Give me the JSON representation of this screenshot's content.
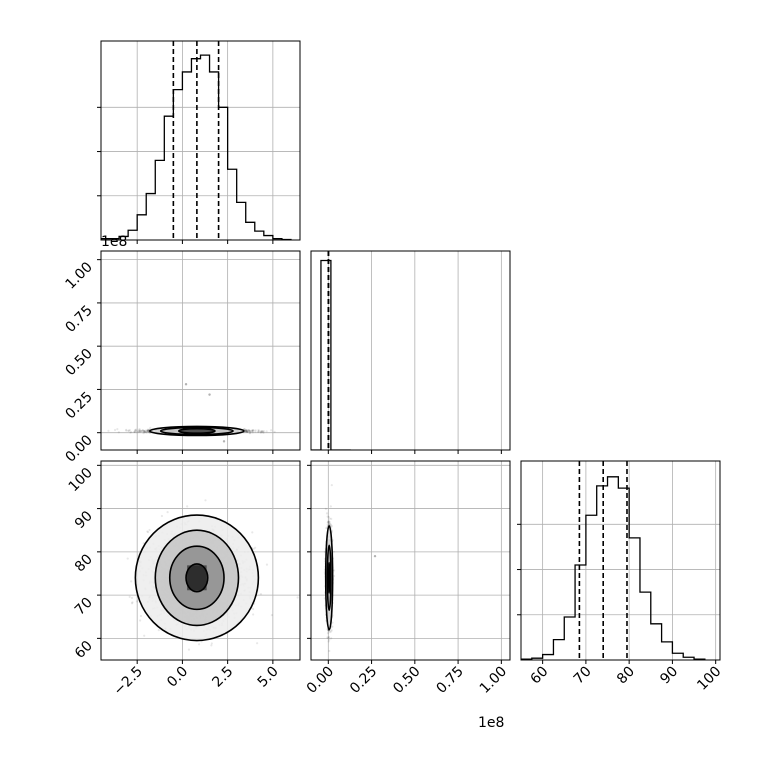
{
  "chart_data": {
    "type": "corner",
    "offset_labels": {
      "y_row2": "1e8",
      "x_col2": "1e8"
    },
    "parameters": [
      {
        "id": "p0",
        "range": [
          -4.5,
          6.5
        ],
        "ticks": [
          -2.5,
          0.0,
          2.5,
          5.0
        ],
        "tick_labels": [
          "−2.5",
          "0.0",
          "2.5",
          "5.0"
        ]
      },
      {
        "id": "p1",
        "range": [
          -0.1,
          1.05
        ],
        "ticks": [
          0.0,
          0.25,
          0.5,
          0.75,
          1.0
        ],
        "tick_labels": [
          "0.00",
          "0.25",
          "0.50",
          "0.75",
          "1.00"
        ]
      },
      {
        "id": "p2",
        "range": [
          55,
          101
        ],
        "ticks": [
          60,
          70,
          80,
          90,
          100
        ],
        "tick_labels": [
          "60",
          "70",
          "80",
          "90",
          "100"
        ]
      }
    ],
    "histograms": [
      {
        "param": "p0",
        "bin_edges": [
          -4.5,
          -4.0,
          -3.5,
          -3.0,
          -2.5,
          -2.0,
          -1.5,
          -1.0,
          -0.5,
          0.0,
          0.5,
          1.0,
          1.5,
          2.0,
          2.5,
          3.0,
          3.5,
          4.0,
          4.5,
          5.0,
          5.5,
          6.0
        ],
        "counts": [
          0.3,
          0.3,
          0.8,
          2.2,
          5.7,
          10.5,
          18.0,
          28.0,
          34.0,
          38.0,
          41.0,
          41.8,
          38.0,
          30.0,
          16.0,
          8.5,
          4.0,
          2.0,
          1.0,
          0.3,
          0.1
        ],
        "ymax": 45,
        "yticks": [
          10,
          20,
          30
        ],
        "quantiles": [
          -0.5,
          0.8,
          2.0
        ]
      },
      {
        "param": "p1",
        "bin_edges": [
          -0.1,
          -0.0425,
          0.015,
          0.0725,
          0.13
        ],
        "counts": [
          0,
          1,
          0,
          0
        ],
        "ymax": 1.05,
        "quantiles": [
          0.0,
          0.0015
        ]
      },
      {
        "param": "p2",
        "bin_edges": [
          55,
          57.5,
          60,
          62.5,
          65,
          67.5,
          70,
          72.5,
          75,
          77.5,
          80,
          82.5,
          85,
          87.5,
          90,
          92.5,
          95,
          97.5
        ],
        "counts": [
          0.2,
          0.4,
          1.2,
          4.5,
          9.5,
          21.0,
          32.0,
          38.5,
          40.5,
          38.0,
          27.0,
          15.0,
          8.0,
          4.0,
          1.5,
          0.6,
          0.2
        ],
        "ymax": 44,
        "yticks": [
          10,
          20,
          30
        ],
        "quantiles": [
          68.5,
          74.0,
          79.5
        ]
      }
    ],
    "scatter_panels": [
      {
        "x": "p0",
        "y": "p1",
        "center": [
          0.8,
          0.01
        ],
        "sigma": [
          1.3,
          0.005
        ],
        "contours": [
          [
            1.0,
            0.013
          ],
          [
            2.0,
            0.02
          ],
          [
            2.6,
            0.026
          ]
        ],
        "outliers": [
          [
            0.2,
            0.28
          ],
          [
            1.5,
            0.22
          ],
          [
            2.3,
            -0.05
          ]
        ]
      },
      {
        "x": "p0",
        "y": "p2",
        "center": [
          0.8,
          74.0
        ],
        "sigma": [
          1.3,
          5.0
        ],
        "contours": [
          [
            0.6,
            3.2
          ],
          [
            1.5,
            7.3
          ],
          [
            2.3,
            11.0
          ],
          [
            3.4,
            14.5
          ]
        ]
      },
      {
        "x": "p1",
        "y": "p2",
        "center": [
          0.005,
          74.0
        ],
        "sigma": [
          0.008,
          5.0
        ],
        "contours": [
          [
            0.003,
            3.5
          ],
          [
            0.01,
            7.5
          ],
          [
            0.02,
            12.0
          ]
        ],
        "outliers": [
          [
            0.27,
            79.0
          ]
        ]
      }
    ],
    "grid": true
  }
}
